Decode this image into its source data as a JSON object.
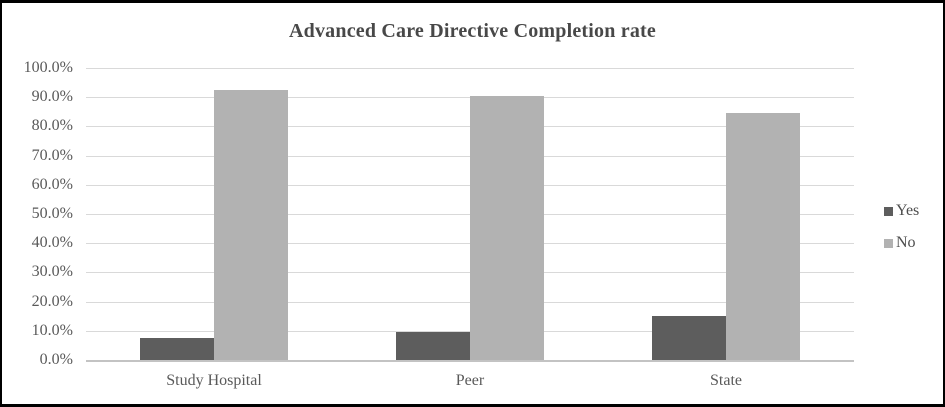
{
  "chart_data": {
    "type": "bar",
    "title": "Advanced Care Directive Completion rate",
    "categories": [
      "Study Hospital",
      "Peer",
      "State"
    ],
    "series": [
      {
        "name": "Yes",
        "color": "#5d5d5d",
        "values": [
          7.5,
          9.7,
          15.2
        ]
      },
      {
        "name": "No",
        "color": "#b2b2b2",
        "values": [
          92.5,
          90.3,
          84.7
        ]
      }
    ],
    "xlabel": "",
    "ylabel": "",
    "ylim": [
      0,
      100
    ],
    "ytick_step": 10,
    "ytick_labels": [
      "0.0%",
      "10.0%",
      "20.0%",
      "30.0%",
      "40.0%",
      "50.0%",
      "60.0%",
      "70.0%",
      "80.0%",
      "90.0%",
      "100.0%"
    ],
    "grid": true,
    "legend_position": "right",
    "legend_entries": [
      "Yes",
      "No"
    ]
  },
  "styles": {
    "frame_border_color": "#000000",
    "background": "#ffffff",
    "title_color": "#484848",
    "tick_label_color": "#595959",
    "gridline_color": "#d9d9d9",
    "axis_line_color": "#c3c3c3"
  }
}
